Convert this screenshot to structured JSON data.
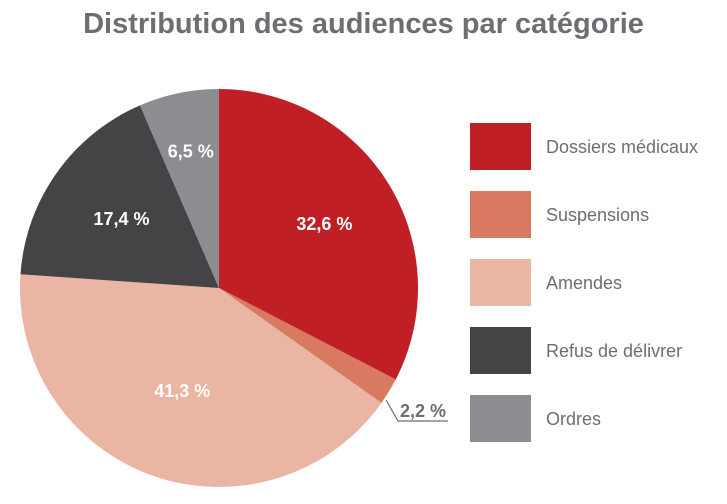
{
  "chart_data": {
    "type": "pie",
    "title": "Distribution des audiences par catégorie",
    "start": "top, clockwise",
    "legend_position": "right",
    "slices": [
      {
        "name": "Dossiers médicaux",
        "value": 32.6,
        "label": "32,6 %",
        "color": "#c01f26"
      },
      {
        "name": "Suspensions",
        "value": 2.2,
        "label": "2,2 %",
        "color": "#d77a61"
      },
      {
        "name": "Amendes",
        "value": 41.3,
        "label": "41,3 %",
        "color": "#eab5a2"
      },
      {
        "name": "Refus de délivrer",
        "value": 17.4,
        "label": "17,4 %",
        "color": "#444446"
      },
      {
        "name": "Ordres",
        "value": 6.5,
        "label": "6,5 %",
        "color": "#8c8d91"
      }
    ]
  }
}
